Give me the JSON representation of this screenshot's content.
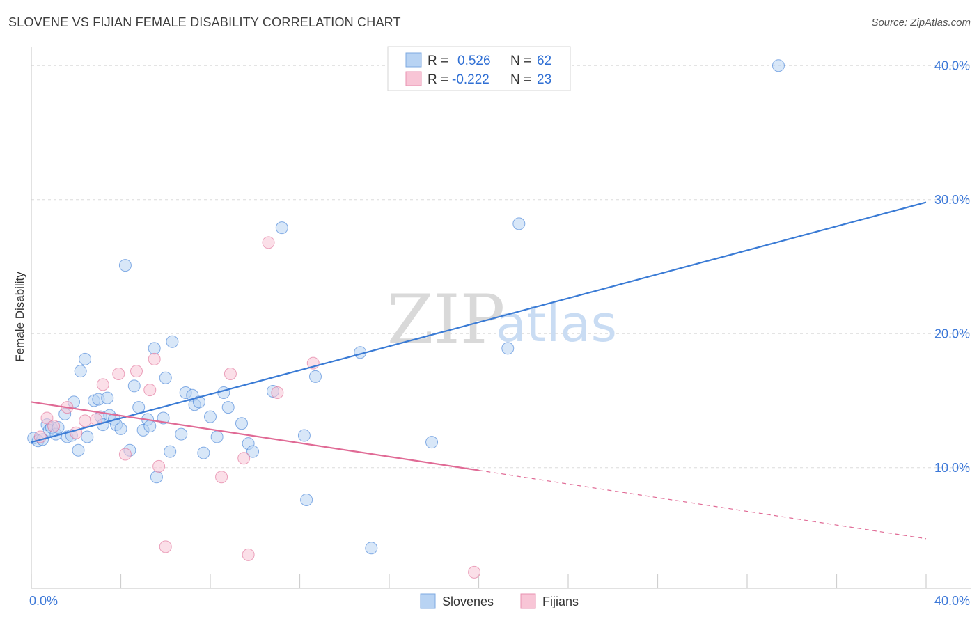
{
  "header": {
    "title": "SLOVENE VS FIJIAN FEMALE DISABILITY CORRELATION CHART",
    "source": "Source: ZipAtlas.com"
  },
  "watermark": {
    "zip": "ZIP",
    "atlas": "atlas"
  },
  "legend_box": {
    "rows": [
      {
        "r_label": "R =",
        "r_value": "0.526",
        "n_label": "N =",
        "n_value": "62",
        "color": "#b8d3f3"
      },
      {
        "r_label": "R =",
        "r_value": "-0.222",
        "n_label": "N =",
        "n_value": "23",
        "color": "#f8c5d6"
      }
    ]
  },
  "bottom_legend": {
    "items": [
      {
        "label": "Slovenes",
        "color": "#b8d3f3"
      },
      {
        "label": "Fijians",
        "color": "#f8c5d6"
      }
    ]
  },
  "chart_data": {
    "type": "scatter",
    "title": "SLOVENE VS FIJIAN FEMALE DISABILITY CORRELATION CHART",
    "xlabel": "",
    "ylabel": "Female Disability",
    "xlim": [
      0,
      40
    ],
    "ylim": [
      1,
      41
    ],
    "x_tick_labels": [
      "0.0%",
      "40.0%"
    ],
    "y_ticks": [
      10,
      20,
      30,
      40
    ],
    "y_tick_labels": [
      "10.0%",
      "20.0%",
      "30.0%",
      "40.0%"
    ],
    "grid": true,
    "legend_position": "top-center",
    "series": [
      {
        "name": "Slovenes",
        "color": "#3a7bd5",
        "fill": "#b8d3f3",
        "trend": {
          "x": [
            0,
            40
          ],
          "y": [
            11.9,
            29.8
          ]
        },
        "points": [
          [
            0.1,
            12.2
          ],
          [
            0.3,
            12.0
          ],
          [
            0.5,
            12.1
          ],
          [
            0.7,
            13.2
          ],
          [
            0.8,
            12.8
          ],
          [
            0.9,
            13.0
          ],
          [
            1.1,
            12.5
          ],
          [
            1.2,
            13.0
          ],
          [
            1.5,
            14.0
          ],
          [
            1.6,
            12.3
          ],
          [
            1.8,
            12.4
          ],
          [
            1.9,
            14.9
          ],
          [
            2.1,
            11.3
          ],
          [
            2.2,
            17.2
          ],
          [
            2.4,
            18.1
          ],
          [
            2.5,
            12.3
          ],
          [
            2.8,
            15.0
          ],
          [
            3.0,
            15.1
          ],
          [
            3.1,
            13.8
          ],
          [
            3.2,
            13.2
          ],
          [
            3.4,
            15.2
          ],
          [
            3.5,
            13.9
          ],
          [
            3.7,
            13.6
          ],
          [
            3.8,
            13.2
          ],
          [
            4.0,
            12.9
          ],
          [
            4.2,
            25.1
          ],
          [
            4.4,
            11.3
          ],
          [
            4.6,
            16.1
          ],
          [
            4.8,
            14.5
          ],
          [
            5.0,
            12.8
          ],
          [
            5.2,
            13.6
          ],
          [
            5.3,
            13.1
          ],
          [
            5.5,
            18.9
          ],
          [
            5.6,
            9.3
          ],
          [
            5.9,
            13.7
          ],
          [
            6.0,
            16.7
          ],
          [
            6.2,
            11.2
          ],
          [
            6.3,
            19.4
          ],
          [
            6.7,
            12.5
          ],
          [
            6.9,
            15.6
          ],
          [
            7.2,
            15.4
          ],
          [
            7.3,
            14.7
          ],
          [
            7.5,
            14.9
          ],
          [
            7.7,
            11.1
          ],
          [
            8.0,
            13.8
          ],
          [
            8.3,
            12.3
          ],
          [
            8.6,
            15.6
          ],
          [
            8.8,
            14.5
          ],
          [
            9.4,
            13.3
          ],
          [
            9.7,
            11.8
          ],
          [
            9.9,
            11.2
          ],
          [
            10.8,
            15.7
          ],
          [
            11.2,
            27.9
          ],
          [
            12.2,
            12.4
          ],
          [
            12.3,
            7.6
          ],
          [
            12.7,
            16.8
          ],
          [
            14.7,
            18.6
          ],
          [
            15.2,
            4.0
          ],
          [
            17.9,
            11.9
          ],
          [
            21.3,
            18.9
          ],
          [
            21.8,
            28.2
          ],
          [
            33.4,
            40.0
          ]
        ]
      },
      {
        "name": "Fijians",
        "color": "#e06a95",
        "fill": "#f8c5d6",
        "trend": {
          "x": [
            0,
            20
          ],
          "y": [
            14.9,
            9.8
          ]
        },
        "trend_dashed": {
          "x": [
            20,
            40
          ],
          "y": [
            9.8,
            4.7
          ]
        },
        "points": [
          [
            0.4,
            12.3
          ],
          [
            0.7,
            13.7
          ],
          [
            1.0,
            13.1
          ],
          [
            1.6,
            14.5
          ],
          [
            2.0,
            12.6
          ],
          [
            2.4,
            13.5
          ],
          [
            2.9,
            13.6
          ],
          [
            3.2,
            16.2
          ],
          [
            3.9,
            17.0
          ],
          [
            4.2,
            11.0
          ],
          [
            4.7,
            17.2
          ],
          [
            5.3,
            15.8
          ],
          [
            5.5,
            18.1
          ],
          [
            5.7,
            10.1
          ],
          [
            6.0,
            4.1
          ],
          [
            8.5,
            9.3
          ],
          [
            8.9,
            17.0
          ],
          [
            9.5,
            10.7
          ],
          [
            9.7,
            3.5
          ],
          [
            10.6,
            26.8
          ],
          [
            11.0,
            15.6
          ],
          [
            12.6,
            17.8
          ],
          [
            19.8,
            2.2
          ]
        ]
      }
    ]
  }
}
